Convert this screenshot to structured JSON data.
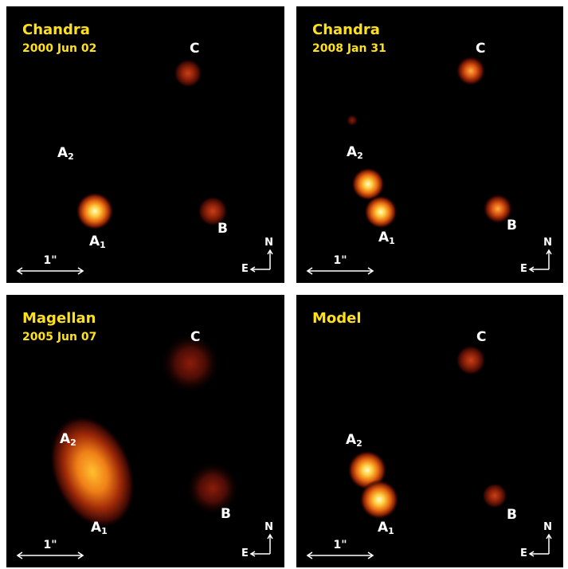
{
  "colors": {
    "label_yellow": "#ffe11a",
    "background": "#000000",
    "text": "#ffffff"
  },
  "panels": [
    {
      "title": "Chandra",
      "date": "2000 Jun 02",
      "labels": {
        "A2": "A",
        "A2_sub": "2",
        "A1": "A",
        "A1_sub": "1",
        "B": "B",
        "C": "C"
      },
      "scale_label": "1\"",
      "compass": {
        "north": "N",
        "east": "E"
      }
    },
    {
      "title": "Chandra",
      "date": "2008 Jan 31",
      "labels": {
        "A2": "A",
        "A2_sub": "2",
        "A1": "A",
        "A1_sub": "1",
        "B": "B",
        "C": "C"
      },
      "scale_label": "1\"",
      "compass": {
        "north": "N",
        "east": "E"
      }
    },
    {
      "title": "Magellan",
      "date": "2005 Jun 07",
      "labels": {
        "A2": "A",
        "A2_sub": "2",
        "A1": "A",
        "A1_sub": "1",
        "B": "B",
        "C": "C"
      },
      "scale_label": "1\"",
      "compass": {
        "north": "N",
        "east": "E"
      }
    },
    {
      "title": "Model",
      "date": "",
      "labels": {
        "A2": "A",
        "A2_sub": "2",
        "A1": "A",
        "A1_sub": "1",
        "B": "B",
        "C": "C"
      },
      "scale_label": "1\"",
      "compass": {
        "north": "N",
        "east": "E"
      }
    }
  ]
}
